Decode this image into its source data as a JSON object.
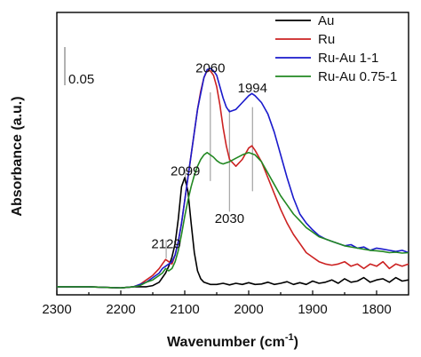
{
  "chart_data": {
    "type": "line",
    "xlabel": "Wavenumber (cm",
    "xlabel_sup": "-1",
    "xlabel_end": ")",
    "ylabel": "Absorbance (a.u.)",
    "xlim": [
      2300,
      1750
    ],
    "ylim": [
      0,
      1
    ],
    "x_reversed": true,
    "x_ticks": [
      2300,
      2200,
      2100,
      2000,
      1900,
      1800
    ],
    "scale_bar_label": "0.05",
    "legend_position": "top-right",
    "annotations": [
      {
        "text": "2060",
        "x": 2060,
        "y": 0.962,
        "guide": [
          0.875,
          0.485
        ]
      },
      {
        "text": "1994",
        "x": 1994,
        "y": 0.875,
        "guide": [
          0.81,
          0.44
        ]
      },
      {
        "text": "2099",
        "x": 2099,
        "y": 0.51,
        "guide": [
          0.535,
          0.475
        ]
      },
      {
        "text": "2030",
        "x": 2030,
        "y": 0.3,
        "guide": [
          0.8,
          0.35
        ]
      },
      {
        "text": "2129",
        "x": 2129,
        "y": 0.19,
        "guide": [
          0.225,
          0.145
        ]
      }
    ],
    "series": [
      {
        "name": "Au",
        "color": "#000000",
        "x": [
          2300,
          2250,
          2200,
          2180,
          2160,
          2150,
          2140,
          2130,
          2125,
          2120,
          2115,
          2110,
          2105,
          2100,
          2095,
          2090,
          2085,
          2080,
          2075,
          2070,
          2060,
          2050,
          2040,
          2030,
          2020,
          2010,
          2000,
          1990,
          1980,
          1970,
          1960,
          1950,
          1940,
          1930,
          1920,
          1910,
          1900,
          1890,
          1880,
          1870,
          1860,
          1850,
          1840,
          1830,
          1820,
          1810,
          1800,
          1790,
          1780,
          1770,
          1760,
          1750
        ],
        "y": [
          0.02,
          0.02,
          0.015,
          0.02,
          0.02,
          0.025,
          0.04,
          0.08,
          0.11,
          0.15,
          0.21,
          0.32,
          0.46,
          0.5,
          0.44,
          0.3,
          0.17,
          0.09,
          0.055,
          0.04,
          0.03,
          0.03,
          0.035,
          0.028,
          0.035,
          0.03,
          0.038,
          0.03,
          0.032,
          0.04,
          0.03,
          0.035,
          0.042,
          0.03,
          0.038,
          0.03,
          0.045,
          0.035,
          0.04,
          0.05,
          0.035,
          0.055,
          0.04,
          0.045,
          0.06,
          0.04,
          0.05,
          0.055,
          0.04,
          0.06,
          0.045,
          0.05
        ]
      },
      {
        "name": "Ru",
        "color": "#cc2222",
        "x": [
          2300,
          2250,
          2200,
          2180,
          2170,
          2160,
          2150,
          2140,
          2135,
          2130,
          2125,
          2120,
          2115,
          2110,
          2105,
          2100,
          2095,
          2090,
          2085,
          2080,
          2075,
          2070,
          2065,
          2060,
          2055,
          2050,
          2045,
          2040,
          2035,
          2030,
          2020,
          2010,
          2000,
          1995,
          1990,
          1980,
          1970,
          1960,
          1950,
          1940,
          1930,
          1920,
          1910,
          1900,
          1890,
          1880,
          1870,
          1860,
          1850,
          1840,
          1830,
          1820,
          1810,
          1800,
          1790,
          1780,
          1770,
          1760,
          1750
        ],
        "y": [
          0.02,
          0.02,
          0.015,
          0.02,
          0.03,
          0.05,
          0.07,
          0.1,
          0.12,
          0.14,
          0.13,
          0.12,
          0.16,
          0.22,
          0.3,
          0.4,
          0.5,
          0.6,
          0.7,
          0.8,
          0.88,
          0.94,
          0.97,
          0.97,
          0.95,
          0.9,
          0.82,
          0.72,
          0.64,
          0.58,
          0.55,
          0.58,
          0.63,
          0.64,
          0.62,
          0.57,
          0.5,
          0.43,
          0.36,
          0.3,
          0.25,
          0.21,
          0.17,
          0.15,
          0.13,
          0.12,
          0.115,
          0.12,
          0.13,
          0.11,
          0.12,
          0.1,
          0.12,
          0.11,
          0.13,
          0.1,
          0.12,
          0.11,
          0.12
        ]
      },
      {
        "name": "Ru-Au 1-1",
        "color": "#1a1acc",
        "x": [
          2300,
          2250,
          2200,
          2180,
          2170,
          2160,
          2150,
          2140,
          2135,
          2130,
          2125,
          2120,
          2115,
          2110,
          2105,
          2100,
          2095,
          2090,
          2085,
          2080,
          2075,
          2070,
          2065,
          2060,
          2055,
          2050,
          2045,
          2040,
          2035,
          2030,
          2020,
          2010,
          2000,
          1995,
          1990,
          1980,
          1970,
          1960,
          1950,
          1940,
          1930,
          1920,
          1910,
          1900,
          1890,
          1880,
          1870,
          1860,
          1850,
          1840,
          1830,
          1820,
          1810,
          1800,
          1790,
          1780,
          1770,
          1760,
          1750
        ],
        "y": [
          0.02,
          0.02,
          0.015,
          0.02,
          0.03,
          0.04,
          0.06,
          0.08,
          0.1,
          0.11,
          0.12,
          0.13,
          0.16,
          0.22,
          0.3,
          0.4,
          0.5,
          0.6,
          0.7,
          0.8,
          0.87,
          0.94,
          0.975,
          0.98,
          0.97,
          0.95,
          0.9,
          0.85,
          0.81,
          0.79,
          0.8,
          0.83,
          0.86,
          0.87,
          0.86,
          0.83,
          0.78,
          0.7,
          0.6,
          0.5,
          0.41,
          0.34,
          0.3,
          0.27,
          0.245,
          0.23,
          0.22,
          0.21,
          0.2,
          0.205,
          0.19,
          0.195,
          0.18,
          0.19,
          0.185,
          0.18,
          0.175,
          0.18,
          0.17
        ]
      },
      {
        "name": "Ru-Au 0.75-1",
        "color": "#228822",
        "x": [
          2300,
          2250,
          2200,
          2180,
          2170,
          2160,
          2150,
          2140,
          2135,
          2130,
          2125,
          2120,
          2115,
          2110,
          2105,
          2100,
          2095,
          2090,
          2085,
          2080,
          2075,
          2070,
          2065,
          2060,
          2055,
          2050,
          2045,
          2040,
          2030,
          2020,
          2010,
          2000,
          1990,
          1980,
          1970,
          1960,
          1950,
          1940,
          1930,
          1920,
          1910,
          1900,
          1890,
          1880,
          1870,
          1860,
          1850,
          1840,
          1830,
          1820,
          1810,
          1800,
          1790,
          1780,
          1770,
          1760,
          1750
        ],
        "y": [
          0.02,
          0.02,
          0.015,
          0.02,
          0.025,
          0.04,
          0.05,
          0.07,
          0.08,
          0.1,
          0.09,
          0.1,
          0.13,
          0.18,
          0.25,
          0.33,
          0.4,
          0.46,
          0.51,
          0.55,
          0.58,
          0.6,
          0.61,
          0.6,
          0.59,
          0.575,
          0.565,
          0.56,
          0.57,
          0.585,
          0.6,
          0.61,
          0.6,
          0.57,
          0.52,
          0.47,
          0.42,
          0.38,
          0.34,
          0.31,
          0.28,
          0.26,
          0.24,
          0.23,
          0.22,
          0.21,
          0.2,
          0.195,
          0.19,
          0.185,
          0.18,
          0.178,
          0.175,
          0.17,
          0.172,
          0.168,
          0.17
        ]
      }
    ]
  }
}
